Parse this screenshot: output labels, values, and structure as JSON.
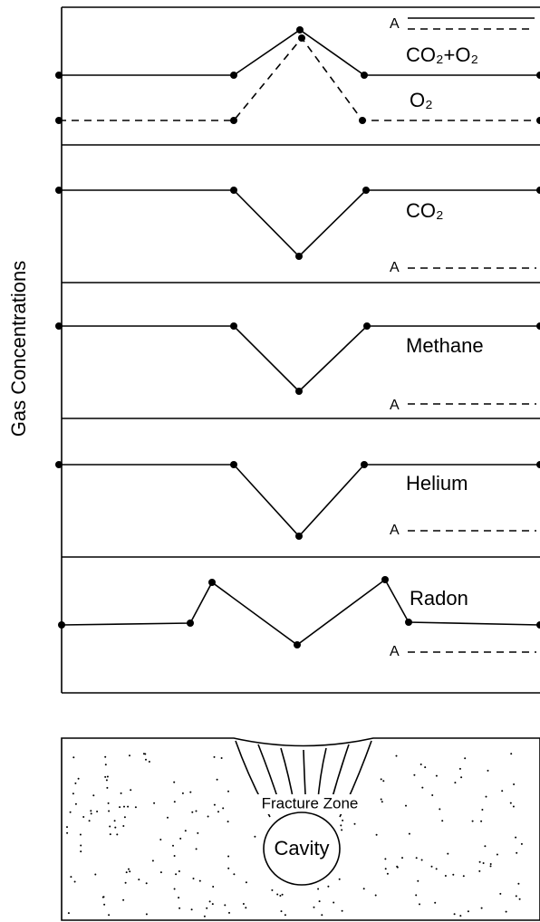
{
  "y_axis_label": "Gas Concentrations",
  "panels": [
    {
      "labels": [
        "CO₂+O₂",
        "O₂"
      ],
      "marker": "A"
    },
    {
      "labels": [
        "CO₂"
      ],
      "marker": "A"
    },
    {
      "labels": [
        "Methane"
      ],
      "marker": "A"
    },
    {
      "labels": [
        "Helium"
      ],
      "marker": "A"
    },
    {
      "labels": [
        "Radon"
      ],
      "marker": "A"
    }
  ],
  "cross_section": {
    "fracture_zone": "Fracture Zone",
    "cavity": "Cavity"
  }
}
